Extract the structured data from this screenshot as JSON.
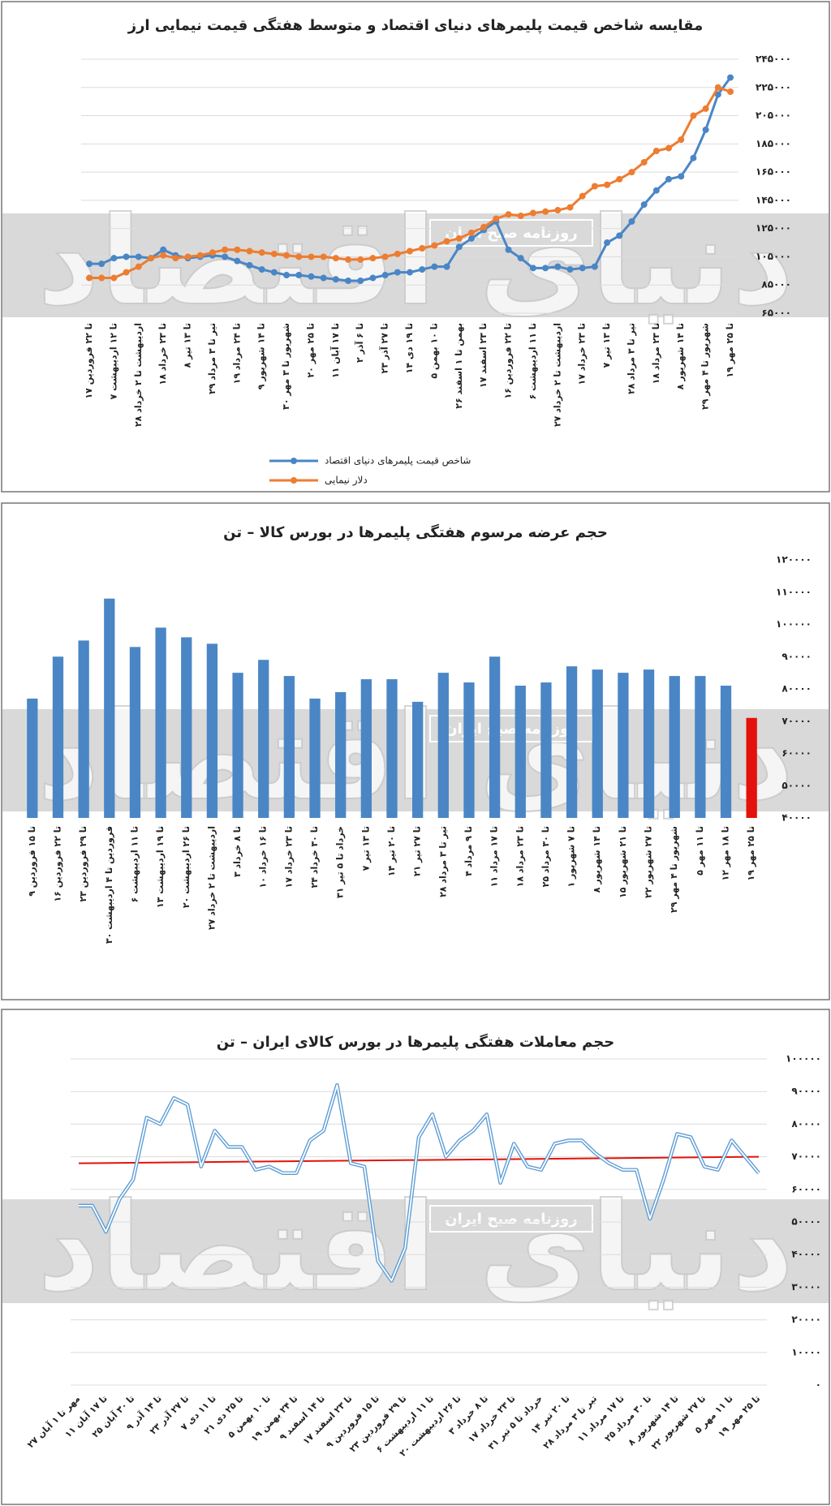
{
  "chart_data": [
    {
      "type": "line",
      "title": "مقایسه شاخص قیمت پلیمرهای دنیای اقتصاد و متوسط هفتگی قیمت نیمایی ارز",
      "watermark": "دنیای اقتصاد",
      "stamp": "روزنامه صبح ایران",
      "categories": [
        "۱۷ تا ۲۲ فروردین",
        null,
        "۷ تا ۱۲ اردیبهشت",
        null,
        "۲۸ اردیبهشت تا ۲ خرداد",
        null,
        "۱۸ تا ۲۳ خرداد",
        null,
        "۸ تا ۱۳ تیر",
        null,
        "۲۹ تیر تا ۳ مرداد",
        null,
        "۱۹ تا ۲۴ مرداد",
        null,
        "۹ تا ۱۴ شهریور",
        null,
        "۳۰ شهریور تا ۳ مهر",
        null,
        "۲۰ تا ۲۵ مهر",
        null,
        "۱۱ تا ۱۷ آبان",
        null,
        "۲ تا ۶ آذر",
        null,
        "۲۳ تا ۲۷ آذر",
        null,
        "۱۴ تا ۱۹ دی",
        null,
        "۵ تا ۱۰ بهمن",
        null,
        "۲۶ بهمن تا ۱ اسفند",
        null,
        "۱۷ تا ۲۳ اسفند",
        null,
        "۱۶ تا ۲۲ فروردین",
        null,
        "۶ تا ۱۱ اردیبهشت",
        null,
        "۲۷ اردیبهشت تا ۲ خرداد",
        null,
        "۱۷ تا ۲۳ خرداد",
        null,
        "۷ تا ۱۳ تیر",
        null,
        "۲۸ تیر تا ۳ مرداد",
        null,
        "۱۸ تا ۲۳ مرداد",
        null,
        "۸ تا ۱۴ شهریور",
        null,
        "۲۹ شهریور تا ۴ مهر",
        null,
        "۱۹ تا ۲۵ مهر"
      ],
      "series": [
        {
          "name": "شاخص قیمت پلیمرهای دنیای اقتصاد",
          "color": "#4a86c5",
          "values": [
            100000,
            100000,
            104000,
            105000,
            105000,
            104000,
            110000,
            106000,
            104000,
            105000,
            106000,
            105000,
            102000,
            99000,
            96000,
            94000,
            92000,
            92000,
            91000,
            90000,
            89000,
            88000,
            88000,
            90000,
            92000,
            94000,
            94000,
            96000,
            98000,
            98000,
            112000,
            118000,
            124000,
            130000,
            110000,
            104000,
            97000,
            97000,
            98000,
            96000,
            97000,
            98000,
            115000,
            120000,
            130000,
            142000,
            152000,
            160000,
            162000,
            175000,
            195000,
            220000,
            232000
          ]
        },
        {
          "name": "دلار نیمایی",
          "color": "#ed7d31",
          "values": [
            90000,
            90000,
            90000,
            94000,
            98000,
            104000,
            106000,
            104000,
            105000,
            106000,
            108000,
            110000,
            110000,
            109000,
            108000,
            107000,
            106000,
            105000,
            105000,
            105000,
            104000,
            103000,
            103000,
            104000,
            105000,
            107000,
            109000,
            111000,
            113000,
            116000,
            118000,
            122000,
            126000,
            132000,
            135000,
            134000,
            136000,
            137000,
            138000,
            140000,
            148000,
            155000,
            156000,
            160000,
            165000,
            172000,
            180000,
            182000,
            188000,
            205000,
            210000,
            225000,
            222000
          ]
        }
      ],
      "ylim": [
        65000,
        245000
      ],
      "yticks": [
        {
          "value": 65000,
          "label": "۶۵۰۰۰"
        },
        {
          "value": 85000,
          "label": "۸۵۰۰۰"
        },
        {
          "value": 105000,
          "label": "۱۰۵۰۰۰"
        },
        {
          "value": 125000,
          "label": "۱۲۵۰۰۰"
        },
        {
          "value": 145000,
          "label": "۱۴۵۰۰۰"
        },
        {
          "value": 165000,
          "label": "۱۶۵۰۰۰"
        },
        {
          "value": 185000,
          "label": "۱۸۵۰۰۰"
        },
        {
          "value": 205000,
          "label": "۲۰۵۰۰۰"
        },
        {
          "value": 225000,
          "label": "۲۲۵۰۰۰"
        },
        {
          "value": 245000,
          "label": "۲۴۵۰۰۰"
        }
      ],
      "grid": true,
      "markers": true,
      "legend": "bottom"
    },
    {
      "type": "bar",
      "title": "حجم عرضه مرسوم هفتگی پلیمرها در بورس کالا – تن",
      "watermark": "دنیای اقتصاد",
      "stamp": "روزنامه صبح ایران",
      "categories": [
        "۹ تا ۱۵ فروردین",
        "۱۶ تا ۲۲ فروردین",
        "۲۳ تا ۲۹ فروردین",
        "۳۰ فروردین تا ۴ اردیبهشت",
        "۶ تا ۱۱ اردیبهشت",
        "۱۳ تا ۱۹ اردیبهشت",
        "۲۰ تا ۲۶ اردیبهشت",
        "۲۷ اردیبهشت تا ۲ خرداد",
        "۳ تا ۸ خرداد",
        "۱۰ تا ۱۶ خرداد",
        "۱۷ تا ۲۳ خرداد",
        "۲۴ تا ۳۰ خرداد",
        "۳۱ خرداد تا ۵ تیر",
        "۷ تا ۱۳ تیر",
        "۱۴ تا ۲۰ تیر",
        "۲۱ تا ۲۷ تیر",
        "۲۸ تیر تا ۳ مرداد",
        "۴ تا ۹ مرداد",
        "۱۱ تا ۱۷ مرداد",
        "۱۸ تا ۲۳ مرداد",
        "۲۵ تا ۳۰ مرداد",
        "۱ تا ۷ شهریور",
        "۸ تا ۱۴ شهریور",
        "۱۵ تا ۲۱ شهریور",
        "۲۲ تا ۲۷ شهریور",
        "۲۹ شهریور تا ۴ مهر",
        "۵ تا ۱۱ مهر",
        "۱۲ تا ۱۸ مهر",
        "۱۹ تا ۲۵ مهر"
      ],
      "values": [
        77000,
        90000,
        95000,
        108000,
        93000,
        99000,
        96000,
        94000,
        85000,
        89000,
        84000,
        77000,
        79000,
        83000,
        83000,
        76000,
        85000,
        82000,
        90000,
        81000,
        82000,
        87000,
        86000,
        85000,
        86000,
        84000,
        84000,
        81000,
        71000
      ],
      "colors": [
        "#4a86c5",
        "#4a86c5",
        "#4a86c5",
        "#4a86c5",
        "#4a86c5",
        "#4a86c5",
        "#4a86c5",
        "#4a86c5",
        "#4a86c5",
        "#4a86c5",
        "#4a86c5",
        "#4a86c5",
        "#4a86c5",
        "#4a86c5",
        "#4a86c5",
        "#4a86c5",
        "#4a86c5",
        "#4a86c5",
        "#4a86c5",
        "#4a86c5",
        "#4a86c5",
        "#4a86c5",
        "#4a86c5",
        "#4a86c5",
        "#4a86c5",
        "#4a86c5",
        "#4a86c5",
        "#4a86c5",
        "#e3120b"
      ],
      "ylim": [
        40000,
        120000
      ],
      "yticks": [
        {
          "value": 40000,
          "label": "۴۰۰۰۰"
        },
        {
          "value": 50000,
          "label": "۵۰۰۰۰"
        },
        {
          "value": 60000,
          "label": "۶۰۰۰۰"
        },
        {
          "value": 70000,
          "label": "۷۰۰۰۰"
        },
        {
          "value": 80000,
          "label": "۸۰۰۰۰"
        },
        {
          "value": 90000,
          "label": "۹۰۰۰۰"
        },
        {
          "value": 100000,
          "label": "۱۰۰۰۰۰"
        },
        {
          "value": 110000,
          "label": "۱۱۰۰۰۰"
        },
        {
          "value": 120000,
          "label": "۱۲۰۰۰۰"
        }
      ],
      "grid": false
    },
    {
      "type": "line",
      "title": "حجم معاملات هفتگی پلیمرها در بورس کالای ایران – تن",
      "watermark": "دنیای اقتصاد",
      "stamp": "روزنامه صبح ایران",
      "categories": [
        "۲۷ مهر تا ۱ آبان",
        null,
        "۱۱ تا ۱۷ آبان",
        null,
        "۲۵ تا ۳۰ آبان",
        null,
        "۹ تا ۱۴ آذر",
        null,
        "۲۳ تا ۲۷ آذر",
        null,
        "۷ تا ۱۱ دی",
        null,
        "۲۱ تا ۲۵ دی",
        null,
        "۵ تا ۱۰ بهمن",
        null,
        "۱۹ تا ۲۴ بهمن",
        null,
        "۹ تا ۱۴ اسفند",
        null,
        "۱۷ تا ۲۳ اسفند",
        null,
        "۹ تا ۱۵ فروردین",
        null,
        "۲۳ تا ۲۹ فروردین",
        null,
        "۶ تا ۱۱ اردیبهشت",
        null,
        "۲۰ تا ۲۶ اردیبهشت",
        null,
        "۳ تا ۸ خرداد",
        null,
        "۱۷ تا ۲۳ خرداد",
        null,
        "۳۱ خرداد تا ۵ تیر",
        null,
        "۱۴ تا ۲۰ تیر",
        null,
        "۲۸ تیر تا ۳ مرداد",
        null,
        "۱۱ تا ۱۷ مرداد",
        null,
        "۲۵ تا ۳۰ مرداد",
        null,
        "۸ تا ۱۴ شهریور",
        null,
        "۲۲ تا ۲۷ شهریور",
        null,
        "۵ تا ۱۱ مهر",
        null,
        "۱۹ تا ۲۵ مهر"
      ],
      "series": [
        {
          "color": "#5b9bd5",
          "values": [
            55000,
            55000,
            47000,
            57000,
            63000,
            82000,
            80000,
            88000,
            86000,
            67000,
            78000,
            73000,
            73000,
            66000,
            67000,
            65000,
            65000,
            75000,
            78000,
            92000,
            68000,
            67000,
            38000,
            32000,
            42000,
            76000,
            83000,
            70000,
            75000,
            78000,
            83000,
            62000,
            74000,
            67000,
            66000,
            74000,
            75000,
            75000,
            71000,
            68000,
            66000,
            66000,
            51000,
            63000,
            77000,
            76000,
            67000,
            66000,
            75000,
            70000,
            65000
          ]
        }
      ],
      "trendline": {
        "color": "#e3120b",
        "values": [
          68000,
          70000
        ]
      },
      "ylim": [
        0,
        100000
      ],
      "yticks": [
        {
          "value": 0,
          "label": "۰"
        },
        {
          "value": 10000,
          "label": "۱۰۰۰۰"
        },
        {
          "value": 20000,
          "label": "۲۰۰۰۰"
        },
        {
          "value": 30000,
          "label": "۳۰۰۰۰"
        },
        {
          "value": 40000,
          "label": "۴۰۰۰۰"
        },
        {
          "value": 50000,
          "label": "۵۰۰۰۰"
        },
        {
          "value": 60000,
          "label": "۶۰۰۰۰"
        },
        {
          "value": 70000,
          "label": "۷۰۰۰۰"
        },
        {
          "value": 80000,
          "label": "۸۰۰۰۰"
        },
        {
          "value": 90000,
          "label": "۹۰۰۰۰"
        },
        {
          "value": 100000,
          "label": "۱۰۰۰۰۰"
        }
      ],
      "grid": true,
      "double_line": true
    }
  ]
}
